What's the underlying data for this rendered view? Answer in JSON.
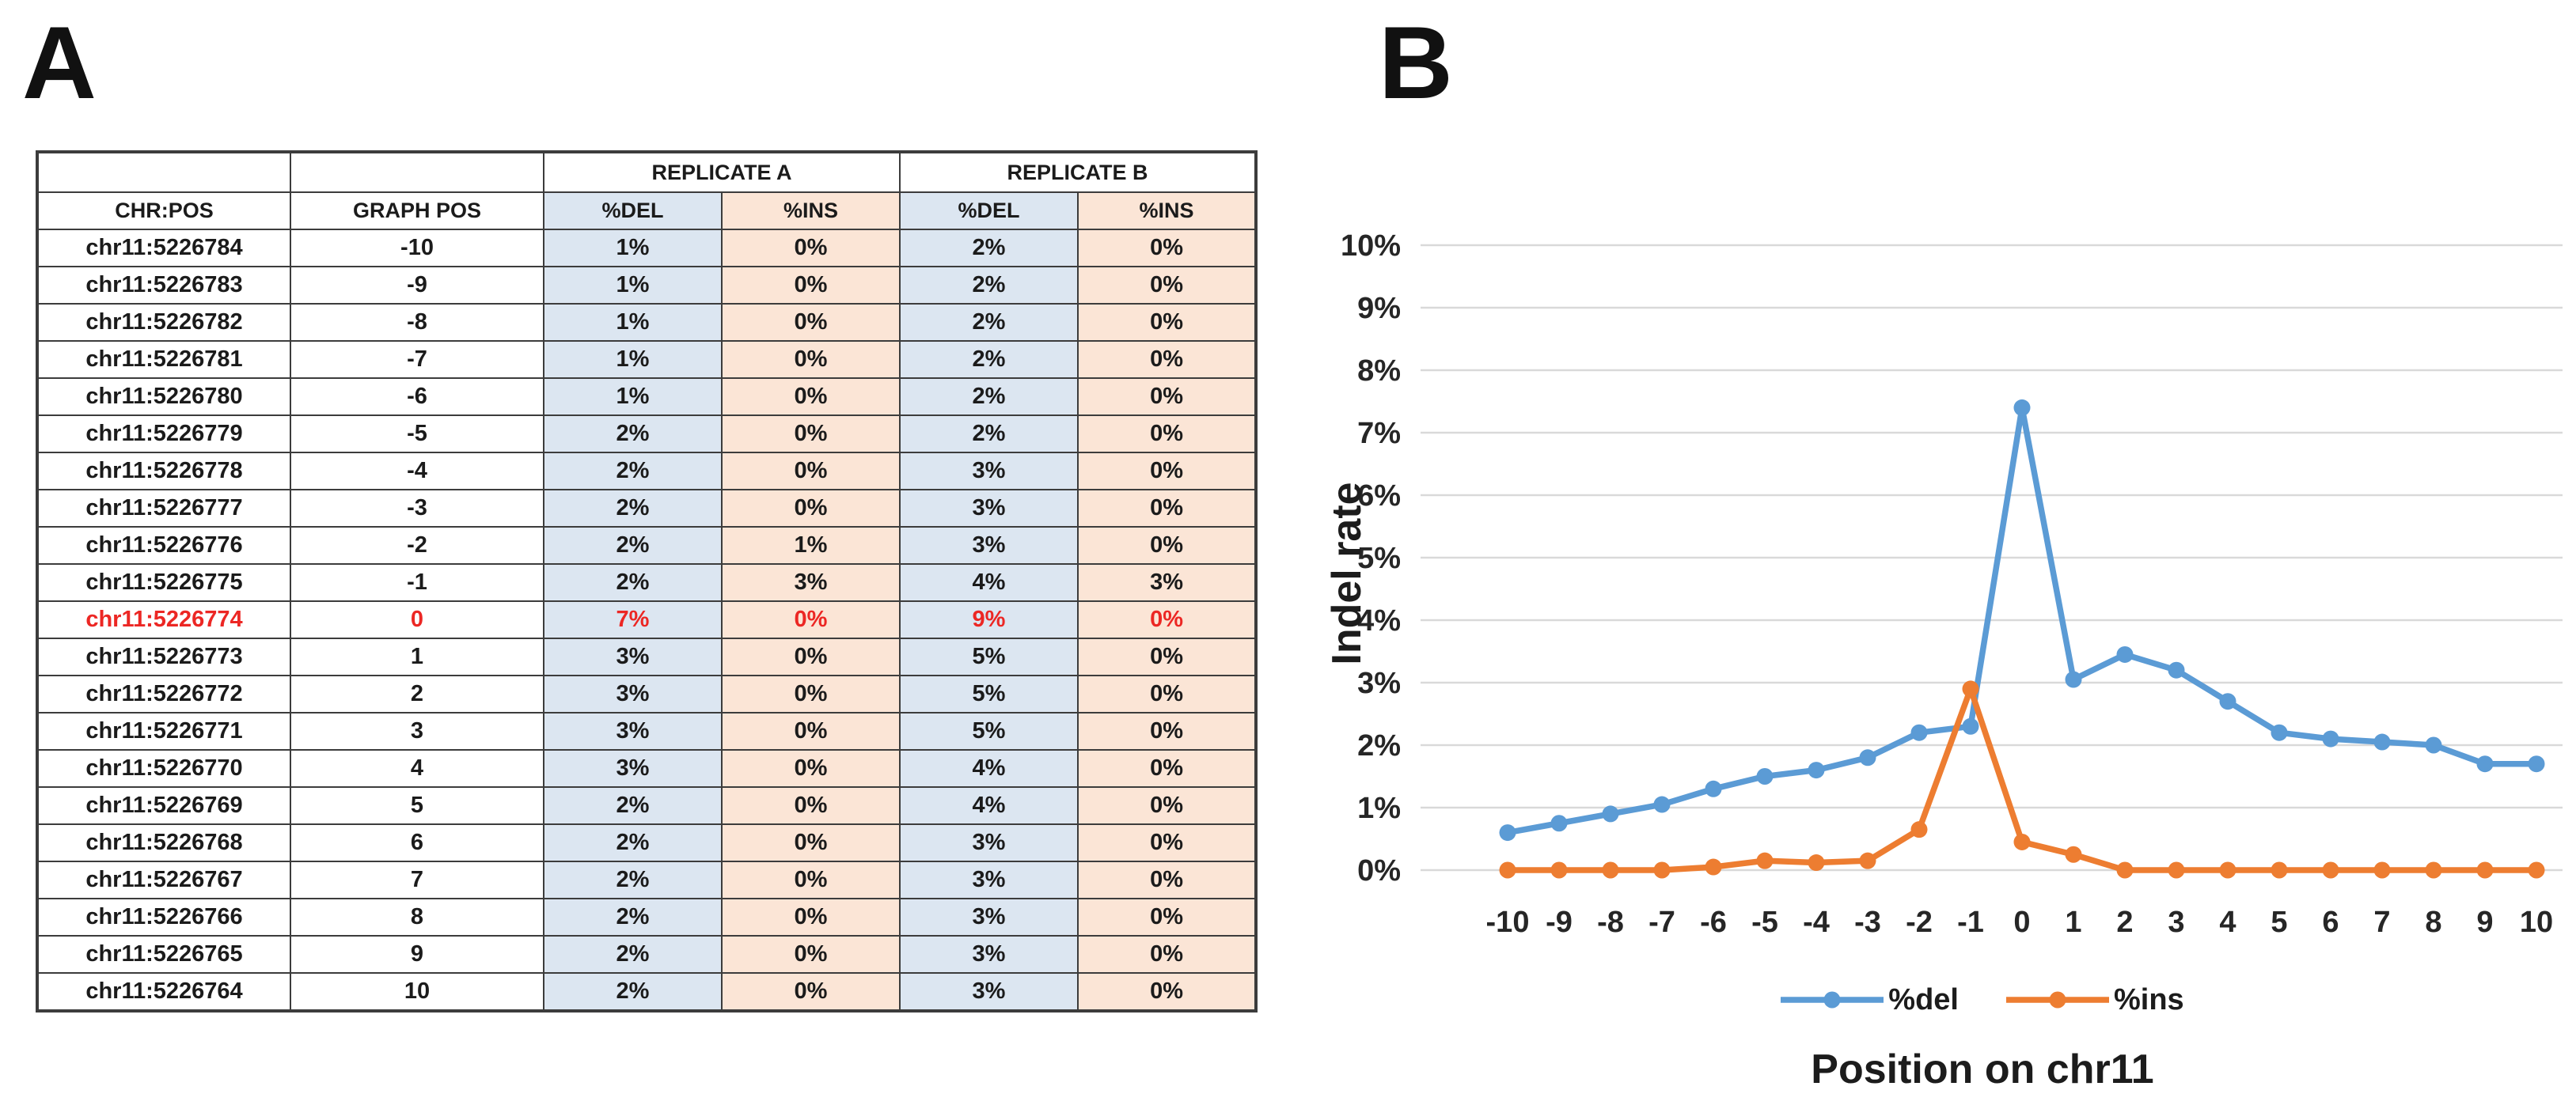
{
  "panel_a": {
    "label": "A",
    "table": {
      "group_headers": [
        {
          "label": "",
          "colspan": 1
        },
        {
          "label": "",
          "colspan": 1
        },
        {
          "label": "REPLICATE A",
          "colspan": 2
        },
        {
          "label": "REPLICATE B",
          "colspan": 2
        }
      ],
      "column_headers": [
        "CHR:POS",
        "GRAPH POS",
        "%DEL",
        "%INS",
        "%DEL",
        "%INS"
      ],
      "rows": [
        [
          "chr11:5226784",
          "-10",
          "1%",
          "0%",
          "2%",
          "0%"
        ],
        [
          "chr11:5226783",
          "-9",
          "1%",
          "0%",
          "2%",
          "0%"
        ],
        [
          "chr11:5226782",
          "-8",
          "1%",
          "0%",
          "2%",
          "0%"
        ],
        [
          "chr11:5226781",
          "-7",
          "1%",
          "0%",
          "2%",
          "0%"
        ],
        [
          "chr11:5226780",
          "-6",
          "1%",
          "0%",
          "2%",
          "0%"
        ],
        [
          "chr11:5226779",
          "-5",
          "2%",
          "0%",
          "2%",
          "0%"
        ],
        [
          "chr11:5226778",
          "-4",
          "2%",
          "0%",
          "3%",
          "0%"
        ],
        [
          "chr11:5226777",
          "-3",
          "2%",
          "0%",
          "3%",
          "0%"
        ],
        [
          "chr11:5226776",
          "-2",
          "2%",
          "1%",
          "3%",
          "0%"
        ],
        [
          "chr11:5226775",
          "-1",
          "2%",
          "3%",
          "4%",
          "3%"
        ],
        [
          "chr11:5226774",
          "0",
          "7%",
          "0%",
          "9%",
          "0%"
        ],
        [
          "chr11:5226773",
          "1",
          "3%",
          "0%",
          "5%",
          "0%"
        ],
        [
          "chr11:5226772",
          "2",
          "3%",
          "0%",
          "5%",
          "0%"
        ],
        [
          "chr11:5226771",
          "3",
          "3%",
          "0%",
          "5%",
          "0%"
        ],
        [
          "chr11:5226770",
          "4",
          "3%",
          "0%",
          "4%",
          "0%"
        ],
        [
          "chr11:5226769",
          "5",
          "2%",
          "0%",
          "4%",
          "0%"
        ],
        [
          "chr11:5226768",
          "6",
          "2%",
          "0%",
          "3%",
          "0%"
        ],
        [
          "chr11:5226767",
          "7",
          "2%",
          "0%",
          "3%",
          "0%"
        ],
        [
          "chr11:5226766",
          "8",
          "2%",
          "0%",
          "3%",
          "0%"
        ],
        [
          "chr11:5226765",
          "9",
          "2%",
          "0%",
          "3%",
          "0%"
        ],
        [
          "chr11:5226764",
          "10",
          "2%",
          "0%",
          "3%",
          "0%"
        ]
      ],
      "highlight_row_index": 10
    }
  },
  "panel_b": {
    "label": "B"
  },
  "chart_data": {
    "type": "line",
    "x": [
      -10,
      -9,
      -8,
      -7,
      -6,
      -5,
      -4,
      -3,
      -2,
      -1,
      0,
      1,
      2,
      3,
      4,
      5,
      6,
      7,
      8,
      9,
      10
    ],
    "series": [
      {
        "name": "%del",
        "color": "#5B9BD5",
        "values": [
          0.6,
          0.75,
          0.9,
          1.05,
          1.3,
          1.5,
          1.6,
          1.8,
          2.2,
          2.3,
          7.4,
          3.05,
          3.45,
          3.2,
          2.7,
          2.2,
          2.1,
          2.05,
          2.0,
          1.7,
          1.7
        ]
      },
      {
        "name": "%ins",
        "color": "#ED7D31",
        "values": [
          0.0,
          0.0,
          0.0,
          0.0,
          0.05,
          0.15,
          0.12,
          0.15,
          0.65,
          2.9,
          0.45,
          0.25,
          0.0,
          0.0,
          0.0,
          0.0,
          0.0,
          0.0,
          0.0,
          0.0,
          0.0
        ]
      }
    ],
    "xlabel": "Position on chr11",
    "ylabel": "Indel rate",
    "ylim": [
      0,
      10
    ],
    "ytick_step": 1,
    "yticks": [
      "0%",
      "1%",
      "2%",
      "3%",
      "4%",
      "5%",
      "6%",
      "7%",
      "8%",
      "9%",
      "10%"
    ],
    "grid": true,
    "legend_position": "bottom"
  },
  "colors": {
    "del_cell_fill": "#DCE6F1",
    "ins_cell_fill": "#FBE5D6",
    "highlight_text": "#EC2724",
    "del_series": "#5B9BD5",
    "ins_series": "#ED7D31",
    "gridline": "#D9D9D9"
  }
}
